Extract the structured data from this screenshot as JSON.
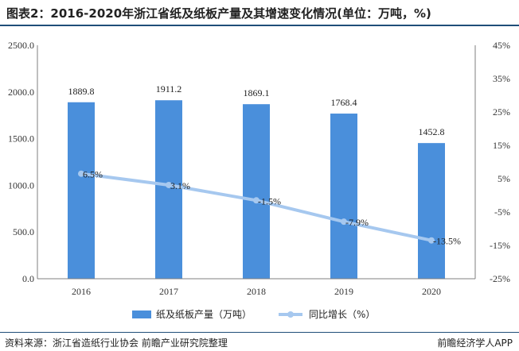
{
  "title": "图表2：2016-2020年浙江省纸及纸板产量及其增速变化情况(单位：万吨，%)",
  "source": "资料来源：浙江省造纸行业协会 前瞻产业研究院整理",
  "brand": "前瞻经济学人APP",
  "colors": {
    "bar": "#4a8fdb",
    "line": "#a6c8ef",
    "axis": "#7f7f7f",
    "rule": "#1f4e79"
  },
  "chart_data": {
    "type": "bar",
    "categories": [
      "2016",
      "2017",
      "2018",
      "2019",
      "2020"
    ],
    "series": [
      {
        "name": "纸及纸板产量（万吨）",
        "type": "bar",
        "axis": "left",
        "values": [
          1889.8,
          1911.2,
          1869.1,
          1768.4,
          1452.8
        ],
        "labels": [
          "1889.8",
          "1911.2",
          "1869.1",
          "1768.4",
          "1452.8"
        ]
      },
      {
        "name": "同比增长（%）",
        "type": "line",
        "axis": "right",
        "values": [
          6.5,
          3.1,
          -1.5,
          -7.9,
          -13.5
        ],
        "labels": [
          "6.5%",
          "3.1%",
          "-1.5%",
          "-7.9%",
          "-13.5%"
        ]
      }
    ],
    "y_left": {
      "min": 0,
      "max": 2500,
      "ticks": [
        "0.0",
        "500.0",
        "1000.0",
        "1500.0",
        "2000.0",
        "2500.0"
      ]
    },
    "y_right": {
      "min": -25,
      "max": 45,
      "ticks": [
        "-25%",
        "-15%",
        "-5%",
        "5%",
        "15%",
        "25%",
        "35%",
        "45%"
      ]
    },
    "legend_position": "bottom",
    "grid": false
  }
}
